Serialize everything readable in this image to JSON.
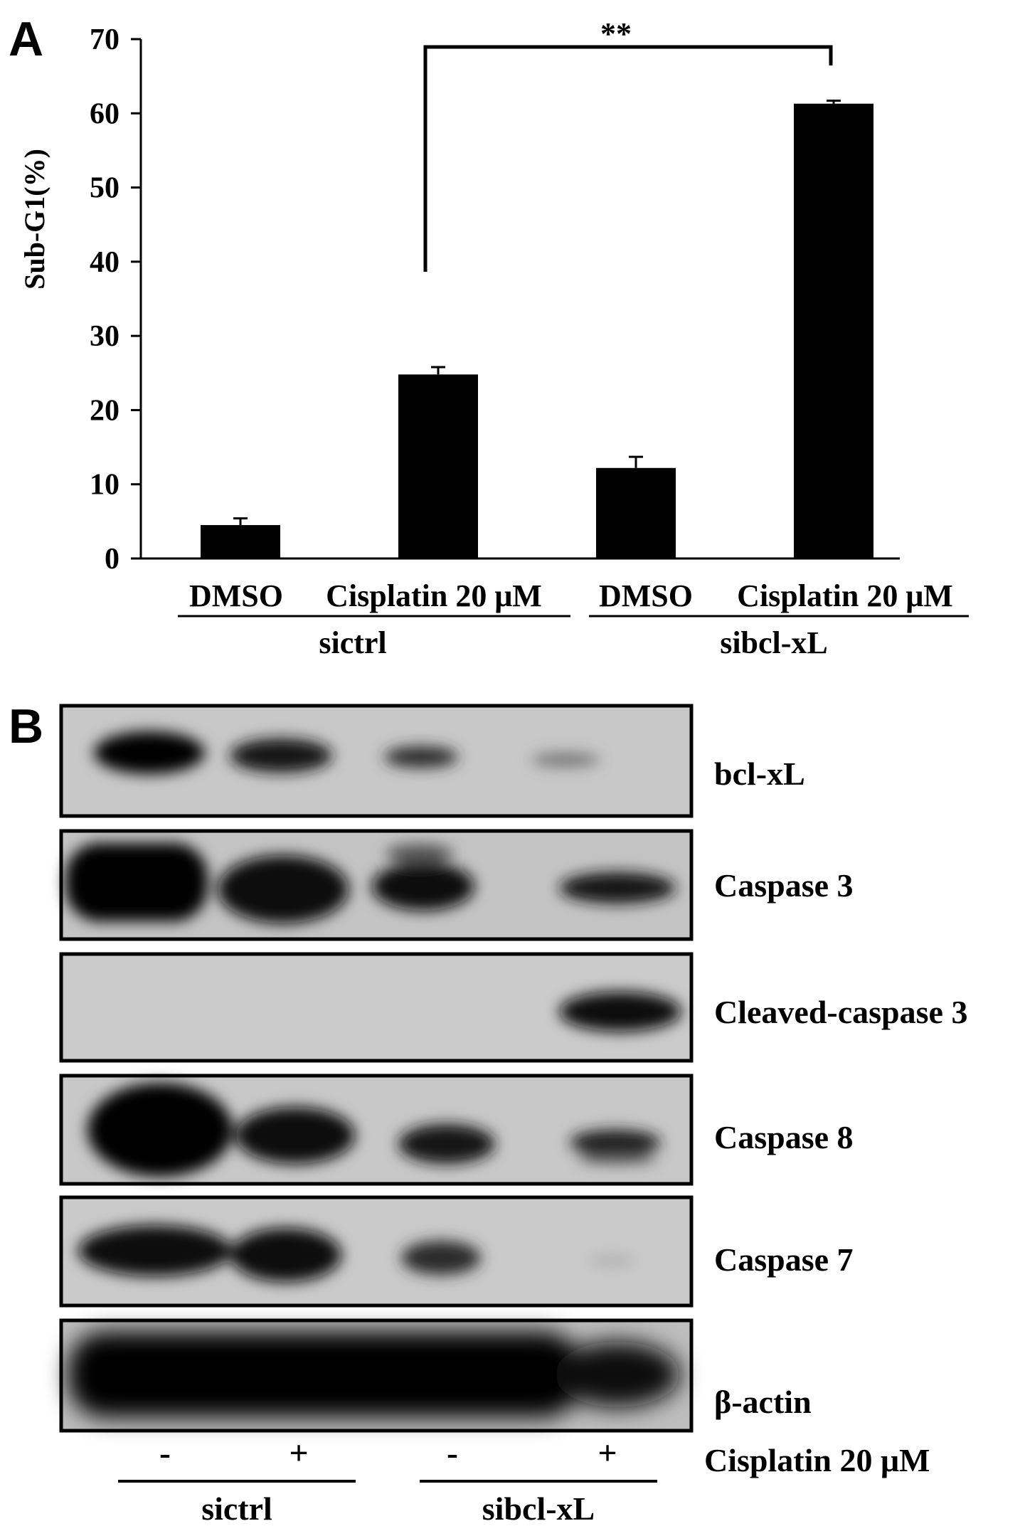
{
  "panel_a": {
    "letter": "A",
    "chart_data": {
      "type": "bar",
      "categories": [
        "DMSO",
        "Cisplatin 20 μM",
        "DMSO",
        "Cisplatin 20 μM"
      ],
      "values": [
        4.5,
        24.8,
        12.2,
        61.3
      ],
      "errors": [
        0.9,
        1.0,
        1.5,
        0.4
      ],
      "groups": [
        {
          "label": "sictrl",
          "categories": [
            0,
            1
          ]
        },
        {
          "label": "sibcl-xL",
          "categories": [
            2,
            3
          ]
        }
      ],
      "ylabel": "Sub-G1(%)",
      "ylim": [
        0,
        70
      ],
      "yticks": [
        0,
        10,
        20,
        30,
        40,
        50,
        60,
        70
      ],
      "grid": false,
      "bar_color": "#000000",
      "significance": {
        "from": 1,
        "to": 3,
        "label": "**"
      }
    }
  },
  "panel_b": {
    "letter": "B",
    "blots": [
      {
        "label": "bcl-xL"
      },
      {
        "label": "Caspase 3"
      },
      {
        "label": "Cleaved-caspase 3"
      },
      {
        "label": "Caspase 8"
      },
      {
        "label": "Caspase 7"
      },
      {
        "label": "β-actin"
      }
    ],
    "lane_signs": [
      "-",
      "+",
      "-",
      "+"
    ],
    "treatment_label": "Cisplatin 20 μM",
    "groups": [
      {
        "label": "sictrl"
      },
      {
        "label": "sibcl-xL"
      }
    ]
  }
}
